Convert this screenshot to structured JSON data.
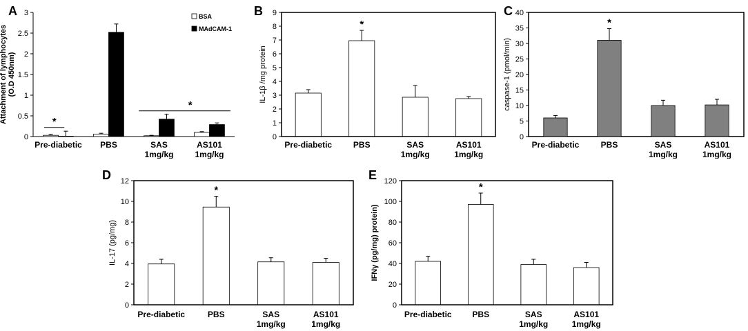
{
  "colors": {
    "bsa": "#ffffff",
    "madcam": "#000000",
    "grey": "#808080",
    "axis": "#000000"
  },
  "chart_data": [
    {
      "id": "A",
      "panel_label": "A",
      "type": "bar",
      "title": "",
      "ylabel": "Attachment of lymphocytes (O.D 450nm)",
      "ylabel_lines": [
        "Attachment of lymphocytes",
        "(O.D 450nm)"
      ],
      "ylim": [
        0,
        3
      ],
      "yticks": [
        0,
        0.5,
        1,
        1.5,
        2,
        2.5,
        3
      ],
      "yticklabels": [
        "0",
        "0.5",
        "1",
        "1.5",
        "2",
        "2.5",
        "3"
      ],
      "categories": [
        {
          "lines": [
            "Pre-diabetic"
          ]
        },
        {
          "lines": [
            "PBS"
          ]
        },
        {
          "lines": [
            "SAS",
            "1mg/kg"
          ]
        },
        {
          "lines": [
            "AS101",
            "1mg/kg"
          ]
        }
      ],
      "series": [
        {
          "name": "BSA",
          "values": [
            0.03,
            0.06,
            0.02,
            0.1
          ],
          "errors": [
            0.02,
            0.02,
            0.01,
            0.02
          ],
          "fill": "bsa"
        },
        {
          "name": "MAdCAM-1",
          "values": [
            0.01,
            2.52,
            0.42,
            0.29
          ],
          "errors": [
            0.12,
            0.2,
            0.12,
            0.04
          ],
          "fill": "madcam"
        }
      ],
      "legend": [
        "BSA",
        "MAdCAM-1"
      ],
      "legend_position": "top-right",
      "annotations": [
        {
          "text": "*",
          "over": "pre-diabetic group"
        },
        {
          "text": "*",
          "over": "SAS and AS101 groups"
        }
      ]
    },
    {
      "id": "B",
      "panel_label": "B",
      "type": "bar",
      "ylabel": "IL-1β /mg protein",
      "ylabel_lines": [
        "IL-1β /mg protein"
      ],
      "ylim": [
        0,
        9
      ],
      "yticks": [
        0,
        1,
        2,
        3,
        4,
        5,
        6,
        7,
        8,
        9
      ],
      "yticklabels": [
        "0",
        "1",
        "2",
        "3",
        "4",
        "5",
        "6",
        "7",
        "8",
        "9"
      ],
      "categories": [
        {
          "lines": [
            "Pre-diabetic"
          ]
        },
        {
          "lines": [
            "PBS"
          ]
        },
        {
          "lines": [
            "SAS",
            "1mg/kg"
          ]
        },
        {
          "lines": [
            "AS101",
            "1mg/kg"
          ]
        }
      ],
      "series": [
        {
          "name": "IL-1β",
          "values": [
            3.15,
            6.95,
            2.85,
            2.75
          ],
          "errors": [
            0.25,
            0.75,
            0.85,
            0.15
          ],
          "fill": "dots"
        }
      ],
      "annotations": [
        {
          "text": "*",
          "category_index": 1
        }
      ]
    },
    {
      "id": "C",
      "panel_label": "C",
      "type": "bar",
      "ylabel": "caspase-1 (pmol/min)",
      "ylabel_lines": [
        "caspase-1 (pmol/min)"
      ],
      "ylim": [
        0,
        40
      ],
      "yticks": [
        0,
        5,
        10,
        15,
        20,
        25,
        30,
        35,
        40
      ],
      "yticklabels": [
        "0",
        "5",
        "10",
        "15",
        "20",
        "25",
        "30",
        "35",
        "40"
      ],
      "categories": [
        {
          "lines": [
            "Pre-diabetic"
          ]
        },
        {
          "lines": [
            "PBS"
          ]
        },
        {
          "lines": [
            "SAS",
            "1mg/kg"
          ]
        },
        {
          "lines": [
            "AS101",
            "1mg/kg"
          ]
        }
      ],
      "series": [
        {
          "name": "caspase-1",
          "values": [
            6,
            31,
            10,
            10.2
          ],
          "errors": [
            0.8,
            3.8,
            1.7,
            1.8
          ],
          "fill": "grey"
        }
      ],
      "annotations": [
        {
          "text": "*",
          "category_index": 1
        }
      ]
    },
    {
      "id": "D",
      "panel_label": "D",
      "type": "bar",
      "ylabel": "IL-17 (pg/mg)",
      "ylabel_lines": [
        "IL-17 (pg/mg)"
      ],
      "ylim": [
        0,
        12
      ],
      "yticks": [
        0,
        2,
        4,
        6,
        8,
        10,
        12
      ],
      "yticklabels": [
        "0",
        "2",
        "4",
        "6",
        "8",
        "10",
        "12"
      ],
      "categories": [
        {
          "lines": [
            "Pre-diabetic"
          ]
        },
        {
          "lines": [
            "PBS"
          ]
        },
        {
          "lines": [
            "SAS",
            "1mg/kg"
          ]
        },
        {
          "lines": [
            "AS101",
            "1mg/kg"
          ]
        }
      ],
      "series": [
        {
          "name": "IL-17",
          "values": [
            3.95,
            9.45,
            4.15,
            4.1
          ],
          "errors": [
            0.45,
            1.05,
            0.4,
            0.4
          ],
          "fill": "cross"
        }
      ],
      "annotations": [
        {
          "text": "*",
          "category_index": 1
        }
      ]
    },
    {
      "id": "E",
      "panel_label": "E",
      "type": "bar",
      "ylabel": "IFNγ (pg/mg) protein)",
      "ylabel_lines": [
        "IFNγ (pg/mg) protein)"
      ],
      "ylim": [
        0,
        120
      ],
      "yticks": [
        0,
        20,
        40,
        60,
        80,
        100,
        120
      ],
      "yticklabels": [
        "0",
        "20",
        "40",
        "60",
        "80",
        "100",
        "120"
      ],
      "categories": [
        {
          "lines": [
            "Pre-diabetic"
          ]
        },
        {
          "lines": [
            "PBS"
          ]
        },
        {
          "lines": [
            "SAS",
            "1mg/kg"
          ]
        },
        {
          "lines": [
            "AS101",
            "1mg/kg"
          ]
        }
      ],
      "series": [
        {
          "name": "IFNγ",
          "values": [
            42,
            97,
            39,
            36
          ],
          "errors": [
            5,
            11,
            5,
            5
          ],
          "fill": "diag"
        }
      ],
      "annotations": [
        {
          "text": "*",
          "category_index": 1
        }
      ]
    }
  ]
}
